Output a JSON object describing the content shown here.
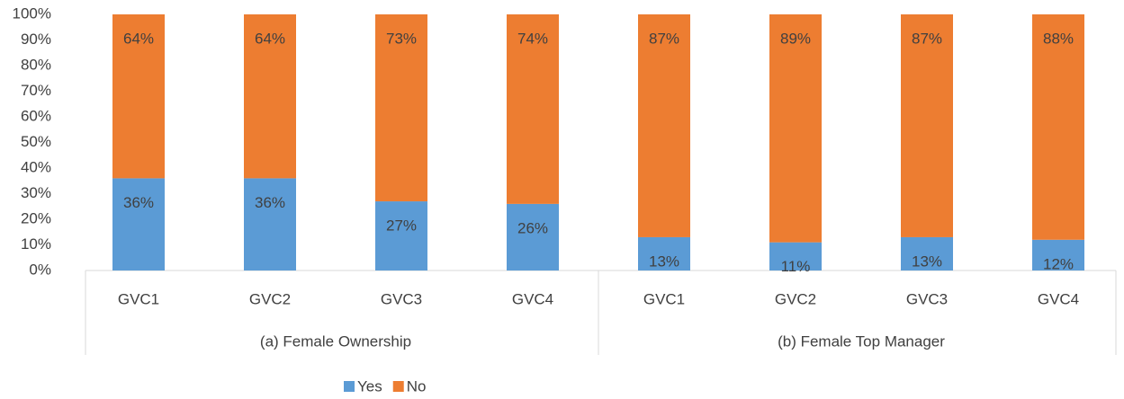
{
  "chart_data": {
    "type": "stacked_bar",
    "groups": [
      {
        "label": "(a) Female Ownership",
        "categories": [
          "GVC1",
          "GVC2",
          "GVC3",
          "GVC4"
        ]
      },
      {
        "label": "(b) Female Top Manager",
        "categories": [
          "GVC1",
          "GVC2",
          "GVC3",
          "GVC4"
        ]
      }
    ],
    "series": [
      {
        "name": "Yes",
        "color": "#5b9bd5",
        "values": [
          36,
          36,
          27,
          26,
          13,
          11,
          13,
          12
        ],
        "value_labels": [
          "36%",
          "36%",
          "27%",
          "26%",
          "13%",
          "11%",
          "13%",
          "12%"
        ]
      },
      {
        "name": "No",
        "color": "#ed7d31",
        "values": [
          64,
          64,
          73,
          74,
          87,
          89,
          87,
          88
        ],
        "value_labels": [
          "64%",
          "64%",
          "73%",
          "74%",
          "87%",
          "89%",
          "87%",
          "88%"
        ]
      }
    ],
    "ylim": [
      0,
      100
    ],
    "yticks": [
      {
        "value": 0,
        "label": "0%"
      },
      {
        "value": 10,
        "label": "10%"
      },
      {
        "value": 20,
        "label": "20%"
      },
      {
        "value": 30,
        "label": "30%"
      },
      {
        "value": 40,
        "label": "40%"
      },
      {
        "value": 50,
        "label": "50%"
      },
      {
        "value": 60,
        "label": "60%"
      },
      {
        "value": 70,
        "label": "70%"
      },
      {
        "value": 80,
        "label": "80%"
      },
      {
        "value": 90,
        "label": "90%"
      },
      {
        "value": 100,
        "label": "100%"
      }
    ],
    "legend": "bottom"
  }
}
